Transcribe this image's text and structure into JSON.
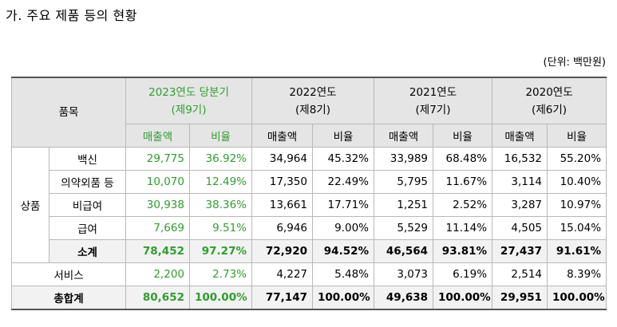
{
  "heading": "가. 주요 제품 등의 현황",
  "unit": "(단위: 백만원)",
  "header": {
    "item": "품목",
    "periods": [
      {
        "year": "2023연도 당분기",
        "term": "(제9기)"
      },
      {
        "year": "2022연도",
        "term": "(제8기)"
      },
      {
        "year": "2021연도",
        "term": "(제7기)"
      },
      {
        "year": "2020연도",
        "term": "(제6기)"
      }
    ],
    "sales": "매출액",
    "ratio": "비율"
  },
  "group_label": "상품",
  "rows": [
    {
      "name": "백신",
      "v": [
        "29,775",
        "36.92%",
        "34,964",
        "45.32%",
        "33,989",
        "68.48%",
        "16,532",
        "55.20%"
      ]
    },
    {
      "name": "의약외품 등",
      "v": [
        "10,070",
        "12.49%",
        "17,350",
        "22.49%",
        "5,795",
        "11.67%",
        "3,114",
        "10.40%"
      ]
    },
    {
      "name": "비급여",
      "v": [
        "30,938",
        "38.36%",
        "13,661",
        "17.71%",
        "1,251",
        "2.52%",
        "3,287",
        "10.97%"
      ]
    },
    {
      "name": "급여",
      "v": [
        "7,669",
        "9.51%",
        "6,946",
        "9.00%",
        "5,529",
        "11.14%",
        "4,505",
        "15.04%"
      ]
    },
    {
      "name": "소계",
      "v": [
        "78,452",
        "97.27%",
        "72,920",
        "94.52%",
        "46,564",
        "93.81%",
        "27,437",
        "91.61%"
      ]
    }
  ],
  "service": {
    "name": "서비스",
    "v": [
      "2,200",
      "2.73%",
      "4,227",
      "5.48%",
      "3,073",
      "6.19%",
      "2,514",
      "8.39%"
    ]
  },
  "total": {
    "name": "총합계",
    "v": [
      "80,652",
      "100.00%",
      "77,147",
      "100.00%",
      "49,638",
      "100.00%",
      "29,951",
      "100.00%"
    ]
  }
}
